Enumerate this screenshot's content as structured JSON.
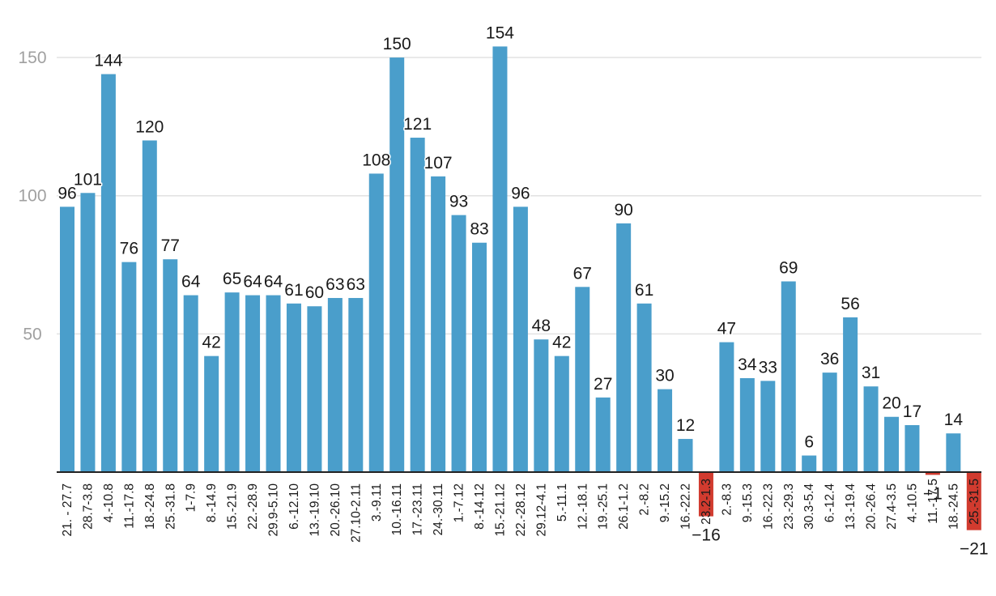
{
  "chart_data": {
    "type": "bar",
    "title": "",
    "xlabel": "",
    "ylabel": "",
    "ylim": [
      -21,
      160
    ],
    "yticks": [
      50,
      100,
      150
    ],
    "grid": true,
    "legend": "none",
    "colors": {
      "positive": "#4a9ecb",
      "negative": "#d13b2f"
    },
    "categories": [
      "21. - 27.7",
      "28.7-3.8",
      "4.-10.8",
      "11.-17.8",
      "18.-24.8",
      "25.-31.8",
      "1-7.9",
      "8.-14.9",
      "15.-21.9",
      "22.-28.9",
      "29.9-5.10",
      "6.-12.10",
      "13.-19.10",
      "20.-26.10",
      "27.10-2.11",
      "3.-9.11",
      "10.-16.11",
      "17.-23.11",
      "24.-30.11",
      "1.-7.12",
      "8.-14.12",
      "15.-21.12",
      "22.-28.12",
      "29.12-4.1",
      "5.-11.1",
      "12.-18.1",
      "19.-25.1",
      "26.1-1.2",
      "2.-8.2",
      "9.-15.2",
      "16.-22.2",
      "23.2-1.3",
      "2.-8.3",
      "9.-15.3",
      "16.-22.3",
      "23.-29.3",
      "30.3-5.4",
      "6.-12.4",
      "13.-19.4",
      "20.-26.4",
      "27.4-3.5",
      "4.-10.5",
      "11.-17.5",
      "18.-24.5",
      "25.-31.5"
    ],
    "values": [
      96,
      101,
      144,
      76,
      120,
      77,
      64,
      42,
      65,
      64,
      64,
      61,
      60,
      63,
      63,
      108,
      150,
      121,
      107,
      93,
      83,
      154,
      96,
      48,
      42,
      67,
      27,
      90,
      61,
      30,
      12,
      -16,
      47,
      34,
      33,
      69,
      6,
      36,
      56,
      31,
      20,
      17,
      -1,
      14,
      -21
    ],
    "data_labels": [
      "96",
      "101",
      "144",
      "76",
      "120",
      "77",
      "64",
      "42",
      "65",
      "64",
      "64",
      "61",
      "60",
      "63",
      "63",
      "108",
      "150",
      "121",
      "107",
      "93",
      "83",
      "154",
      "96",
      "48",
      "42",
      "67",
      "27",
      "90",
      "61",
      "30",
      "12",
      "−16",
      "47",
      "34",
      "33",
      "69",
      "6",
      "36",
      "56",
      "31",
      "20",
      "17",
      "−1",
      "14",
      "−21"
    ]
  }
}
